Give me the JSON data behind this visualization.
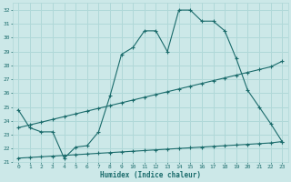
{
  "xlabel": "Humidex (Indice chaleur)",
  "bg_color": "#cce8e8",
  "grid_color": "#b0d8d8",
  "line_color": "#1a6b6b",
  "ylim": [
    21,
    32.5
  ],
  "xlim": [
    -0.5,
    23.5
  ],
  "yticks": [
    21,
    22,
    23,
    24,
    25,
    26,
    27,
    28,
    29,
    30,
    31,
    32
  ],
  "xticks": [
    0,
    1,
    2,
    3,
    4,
    5,
    6,
    7,
    8,
    9,
    10,
    11,
    12,
    13,
    14,
    15,
    16,
    17,
    18,
    19,
    20,
    21,
    22,
    23
  ],
  "top_line": {
    "x": [
      0,
      1,
      2,
      3,
      4,
      5,
      6,
      7,
      8,
      9,
      10,
      11,
      12,
      13,
      14,
      15,
      16,
      17,
      18,
      19,
      20,
      21,
      22,
      23
    ],
    "y": [
      24.8,
      23.5,
      23.2,
      23.2,
      21.3,
      22.1,
      22.2,
      23.2,
      25.8,
      28.8,
      29.3,
      30.5,
      30.5,
      29.0,
      32.0,
      32.0,
      31.2,
      31.2,
      30.5,
      28.5,
      26.2,
      25.0,
      23.8,
      22.5
    ]
  },
  "mid_line": {
    "x": [
      0,
      1,
      2,
      3,
      4,
      5,
      6,
      7,
      8,
      9,
      10,
      11,
      12,
      13,
      14,
      15,
      16,
      17,
      18,
      19,
      20,
      21,
      22,
      23
    ],
    "y": [
      23.5,
      23.7,
      23.9,
      24.1,
      24.3,
      24.5,
      24.7,
      24.9,
      25.1,
      25.3,
      25.5,
      25.7,
      25.9,
      26.1,
      26.3,
      26.5,
      26.7,
      26.9,
      27.1,
      27.3,
      27.5,
      27.7,
      27.9,
      28.3
    ]
  },
  "bot_line": {
    "x": [
      0,
      1,
      2,
      3,
      4,
      5,
      6,
      7,
      8,
      9,
      10,
      11,
      12,
      13,
      14,
      15,
      16,
      17,
      18,
      19,
      20,
      21,
      22,
      23
    ],
    "y": [
      21.3,
      21.35,
      21.4,
      21.45,
      21.5,
      21.55,
      21.6,
      21.65,
      21.7,
      21.75,
      21.8,
      21.85,
      21.9,
      21.95,
      22.0,
      22.05,
      22.1,
      22.15,
      22.2,
      22.25,
      22.3,
      22.35,
      22.4,
      22.5
    ]
  }
}
